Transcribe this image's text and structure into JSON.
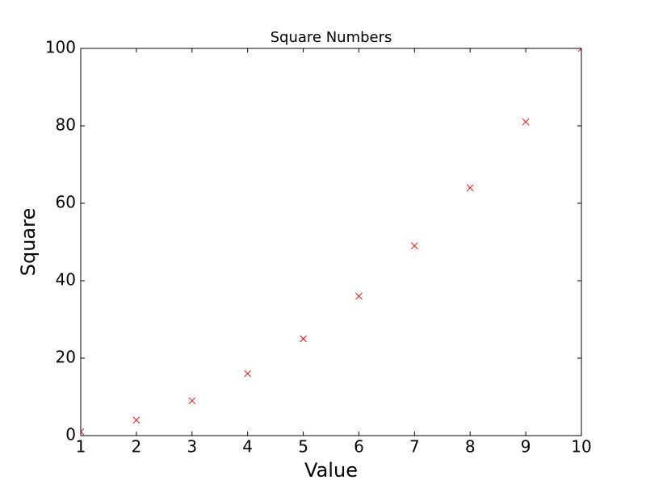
{
  "chart_data": {
    "type": "scatter",
    "title": "Square Numbers",
    "xlabel": "Value",
    "ylabel": "Square",
    "x": [
      1,
      2,
      3,
      4,
      5,
      6,
      7,
      8,
      9,
      10
    ],
    "series": [
      {
        "name": "Square",
        "color": "#ff0000",
        "values": [
          1,
          4,
          9,
          16,
          25,
          36,
          49,
          64,
          81,
          100
        ]
      }
    ],
    "xlim": [
      1,
      10
    ],
    "xticks": [
      1,
      2,
      3,
      4,
      5,
      6,
      7,
      8,
      9,
      10
    ],
    "ylim": [
      0,
      100
    ],
    "yticks": [
      0,
      20,
      40,
      60,
      80,
      100
    ],
    "grid": false,
    "legend": false
  }
}
